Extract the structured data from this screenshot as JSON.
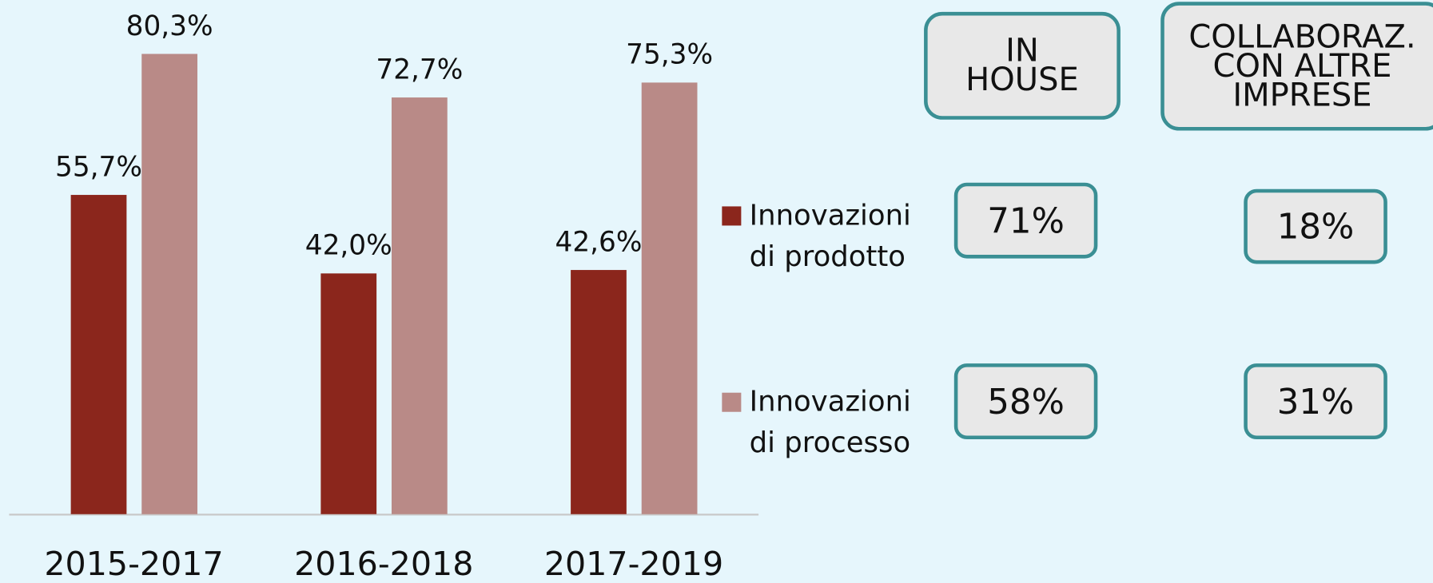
{
  "chart_data": {
    "type": "bar",
    "categories": [
      "2015-2017",
      "2016-2018",
      "2017-2019"
    ],
    "series": [
      {
        "name": "Innovazioni di prodotto",
        "color": "#8b261c",
        "values": [
          55.7,
          42.0,
          42.6
        ],
        "value_labels": [
          "55,7%",
          "42,0%",
          "42,6%"
        ]
      },
      {
        "name": "Innovazioni di processo",
        "color": "#b98a87",
        "values": [
          80.3,
          72.7,
          75.3
        ],
        "value_labels": [
          "80,3%",
          "72,7%",
          "75,3%"
        ]
      }
    ]
  },
  "table": {
    "columns": [
      "IN HOUSE",
      "COLLABORAZ. CON ALTRE IMPRESE"
    ],
    "rows": [
      [
        "71%",
        "18%"
      ],
      [
        "58%",
        "31%"
      ]
    ]
  }
}
